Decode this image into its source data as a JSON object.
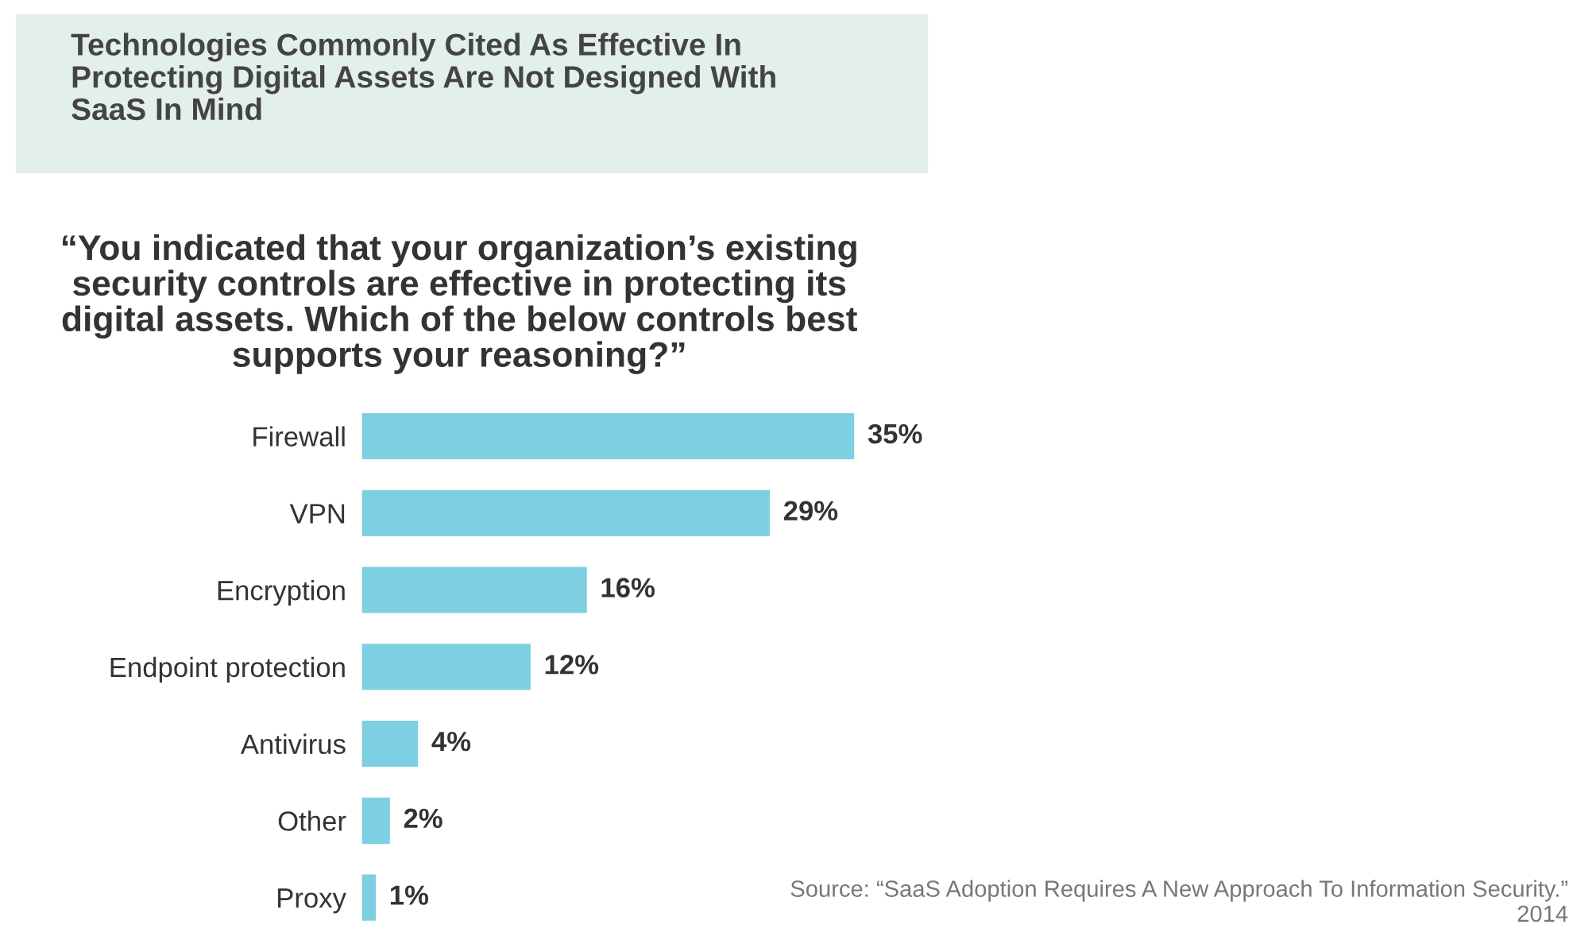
{
  "chart_data": {
    "type": "bar",
    "orientation": "horizontal",
    "title": "Technologies Commonly Cited As Effective In\nProtecting Digital Assets Are Not Designed With\nSaaS In Mind",
    "subtitle": "“You indicated that your organization’s existing\nsecurity controls are effective in protecting its\ndigital assets. Which of the below controls best\nsupports your reasoning?”",
    "categories": [
      "Firewall",
      "VPN",
      "Encryption",
      "Endpoint protection",
      "Antivirus",
      "Other",
      "Proxy"
    ],
    "values": [
      35,
      29,
      16,
      12,
      4,
      2,
      1
    ],
    "value_labels": [
      "35%",
      "29%",
      "16%",
      "12%",
      "4%",
      "2%",
      "1%"
    ],
    "color": "#7dcfe1",
    "annotations": [
      "Source: “SaaS Adoption Requires A New Approach To Information Security.”\n2014"
    ],
    "grid": false,
    "legend": false
  }
}
